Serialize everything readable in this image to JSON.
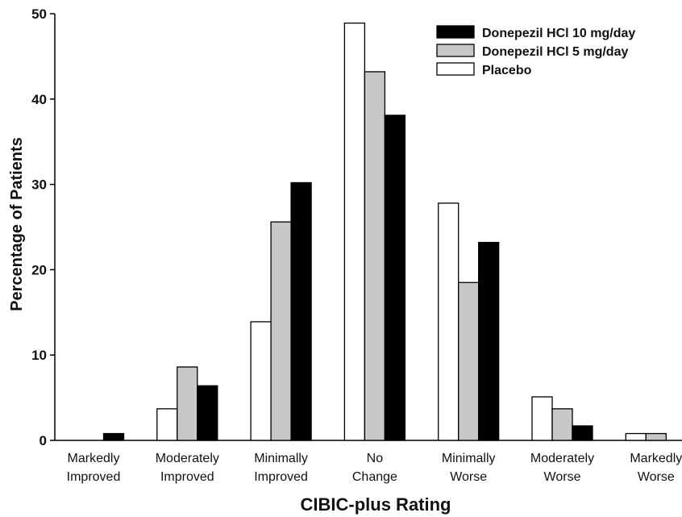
{
  "chart_data": {
    "type": "bar",
    "title": "",
    "xlabel": "CIBIC-plus Rating",
    "ylabel": "Percentage of Patients",
    "ylim": [
      0,
      50
    ],
    "yticks": [
      0,
      10,
      20,
      30,
      40,
      50
    ],
    "grid": false,
    "legend_position": "top-right",
    "categories": [
      [
        "Markedly",
        "Improved"
      ],
      [
        "Moderately",
        "Improved"
      ],
      [
        "Minimally",
        "Improved"
      ],
      [
        "No",
        "Change"
      ],
      [
        "Minimally",
        "Worse"
      ],
      [
        "Moderately",
        "Worse"
      ],
      [
        "Markedly",
        "Worse"
      ]
    ],
    "series": [
      {
        "name": "Placebo",
        "color": "#ffffff",
        "values": [
          0,
          3.7,
          13.9,
          48.9,
          27.8,
          5.1,
          0.8
        ]
      },
      {
        "name": "Donepezil HCl 5 mg/day",
        "color": "#c8c8c8",
        "values": [
          0,
          8.6,
          25.6,
          43.2,
          18.5,
          3.7,
          0.8
        ]
      },
      {
        "name": "Donepezil HCl 10 mg/day",
        "color": "#000000",
        "values": [
          0.8,
          6.4,
          30.2,
          38.1,
          23.2,
          1.7,
          0
        ]
      }
    ],
    "legend_order": [
      "Donepezil HCl 10 mg/day",
      "Donepezil HCl 5 mg/day",
      "Placebo"
    ]
  }
}
